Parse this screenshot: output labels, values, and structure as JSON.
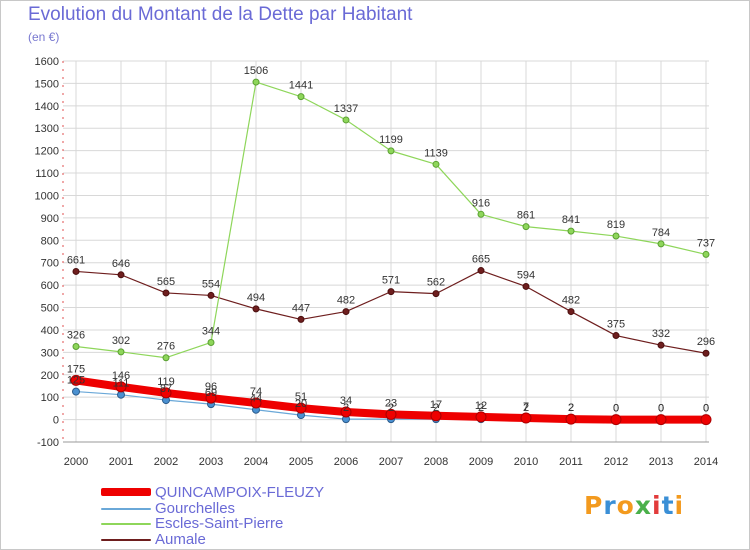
{
  "header": {
    "title": "Evolution du Montant de la Dette par Habitant",
    "subtitle": "(en €)"
  },
  "colors": {
    "background": "#ffffff",
    "grid": "#d8d8d8",
    "zero_line": "#e05050",
    "title": "#6a6ad6"
  },
  "logo": {
    "letters": [
      "P",
      "r",
      "o",
      "x",
      "i",
      "t",
      "i"
    ],
    "colors": [
      "#f39a1e",
      "#3a8fd6",
      "#f39a1e",
      "#4ab04a",
      "#e23b3b",
      "#3a8fd6",
      "#f39a1e"
    ]
  },
  "chart_data": {
    "type": "line",
    "title": "Evolution du Montant de la Dette par Habitant",
    "ylabel": "(en €)",
    "xlabel": "",
    "x": [
      "2000",
      "2001",
      "2002",
      "2003",
      "2004",
      "2005",
      "2006",
      "2007",
      "2008",
      "2009",
      "2010",
      "2011",
      "2012",
      "2013",
      "2014"
    ],
    "ylim": [
      -100,
      1600
    ],
    "yticks": [
      "-100",
      "0",
      "100",
      "200",
      "300",
      "400",
      "500",
      "600",
      "700",
      "800",
      "900",
      "1000",
      "1100",
      "1200",
      "1300",
      "1400",
      "1500",
      "1600"
    ],
    "grid": true,
    "legend_position": "bottom-left",
    "series": [
      {
        "name": "Aumale",
        "color": "#6e1e1e",
        "values": [
          661,
          646,
          565,
          554,
          494,
          447,
          482,
          571,
          562,
          665,
          594,
          482,
          375,
          332,
          296
        ],
        "labels": [
          "661",
          "646",
          "565",
          "554",
          "494",
          "447",
          "482",
          "571",
          "562",
          "665",
          "594",
          "482",
          "375",
          "332",
          "296"
        ]
      },
      {
        "name": "Escles-Saint-Pierre",
        "color": "#8ed65a",
        "values": [
          326,
          302,
          276,
          344,
          1506,
          1441,
          1337,
          1199,
          1139,
          916,
          861,
          841,
          819,
          784,
          737
        ],
        "labels": [
          "326",
          "302",
          "276",
          "344",
          "1506",
          "1441",
          "1337",
          "1199",
          "1139",
          "916",
          "861",
          "841",
          "819",
          "784",
          "737"
        ]
      },
      {
        "name": "Gourchelles",
        "color": "#6aa8d8",
        "values": [
          125,
          111,
          87,
          69,
          44,
          20,
          2,
          2,
          2,
          2,
          2,
          2,
          0,
          0,
          0
        ],
        "labels": [
          "125",
          "111",
          "87",
          "69",
          "44",
          "20",
          "2",
          "2",
          "2",
          "2",
          "2",
          "2",
          "0",
          "0",
          "0"
        ]
      },
      {
        "name": "QUINCAMPOIX-FLEUZY",
        "color": "#ee0000",
        "values": [
          175,
          146,
          119,
          96,
          74,
          51,
          34,
          23,
          17,
          12,
          7,
          2,
          0,
          0,
          0
        ],
        "labels": [
          "175",
          "146",
          "119",
          "96",
          "74",
          "51",
          "34",
          "23",
          "17",
          "12",
          "7",
          "2",
          "0",
          "0",
          "0"
        ]
      }
    ],
    "legend": [
      "QUINCAMPOIX-FLEUZY",
      "Gourchelles",
      "Escles-Saint-Pierre",
      "Aumale"
    ]
  }
}
